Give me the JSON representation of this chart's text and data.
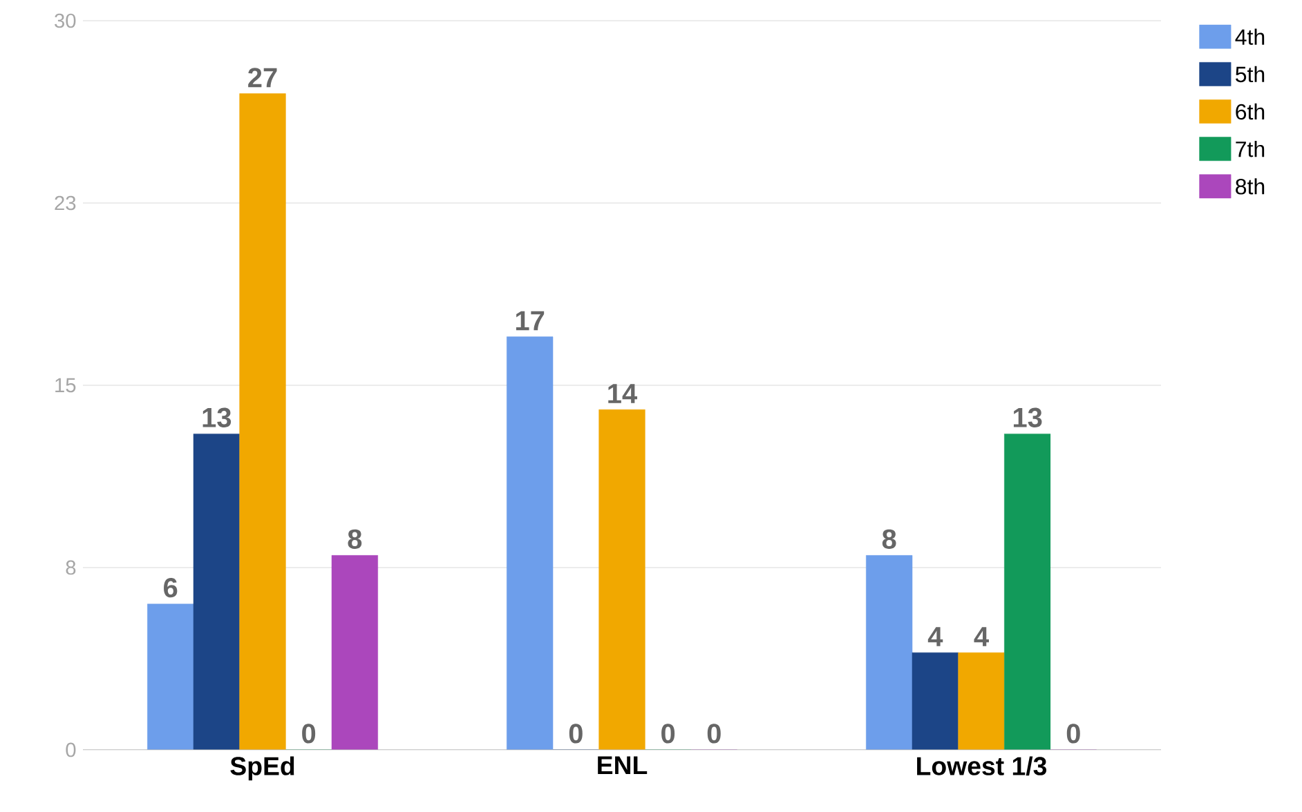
{
  "chart_data": {
    "type": "bar",
    "categories": [
      "SpEd",
      "ENL",
      "Lowest 1/3"
    ],
    "series": [
      {
        "name": "4th",
        "color": "#6d9eeb",
        "values": [
          6,
          17,
          8
        ]
      },
      {
        "name": "5th",
        "color": "#1c4587",
        "values": [
          13,
          0,
          4
        ]
      },
      {
        "name": "6th",
        "color": "#f1a800",
        "values": [
          27,
          14,
          4
        ]
      },
      {
        "name": "7th",
        "color": "#129a5a",
        "values": [
          0,
          0,
          13
        ]
      },
      {
        "name": "8th",
        "color": "#ab47bc",
        "values": [
          8,
          0,
          0
        ]
      }
    ],
    "ylim": [
      0,
      30
    ],
    "yticks": [
      0,
      {
        "value": 7.5,
        "label": "8"
      },
      15,
      {
        "value": 22.5,
        "label": "23"
      },
      30
    ],
    "grid": "y",
    "legend": "top right",
    "data_labels": true
  }
}
